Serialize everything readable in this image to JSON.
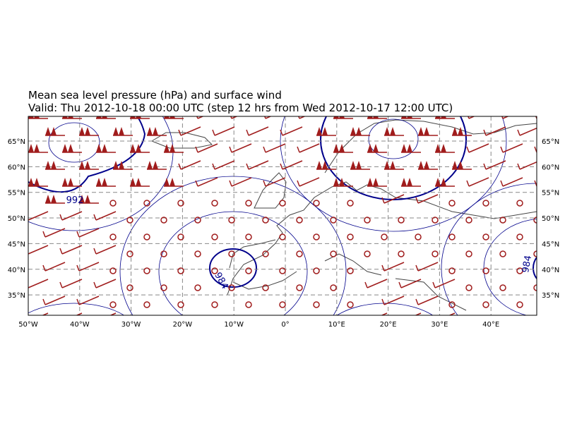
{
  "title": [
    "Mean sea level pressure (hPa) and surface wind",
    "Valid: Thu 2012-10-18 00:00 UTC (step 12 hrs from Wed 2012-10-17 12:00 UTC)"
  ],
  "x_ticks": [
    {
      "value": -50,
      "label": "50°W"
    },
    {
      "value": -40,
      "label": "40°W"
    },
    {
      "value": -30,
      "label": "30°W"
    },
    {
      "value": -20,
      "label": "20°W"
    },
    {
      "value": -10,
      "label": "10°W"
    },
    {
      "value": 0,
      "label": "0°"
    },
    {
      "value": 10,
      "label": "10°E"
    },
    {
      "value": 20,
      "label": "20°E"
    },
    {
      "value": 30,
      "label": "30°E"
    },
    {
      "value": 40,
      "label": "40°E"
    }
  ],
  "y_ticks": [
    {
      "value": 35,
      "label": "35°N"
    },
    {
      "value": 40,
      "label": "40°N"
    },
    {
      "value": 45,
      "label": "45°N"
    },
    {
      "value": 50,
      "label": "50°N"
    },
    {
      "value": 55,
      "label": "55°N"
    },
    {
      "value": 60,
      "label": "60°N"
    },
    {
      "value": 65,
      "label": "65°N"
    }
  ],
  "contour_labels": [
    "992",
    "984",
    "984"
  ]
}
